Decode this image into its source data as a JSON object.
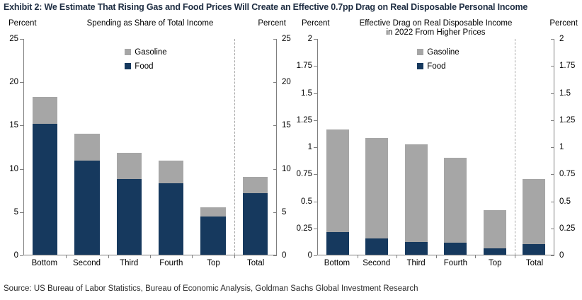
{
  "title": "Exhibit 2: We Estimate That Rising Gas and Food Prices Will Create an Effective 0.7pp Drag on Real Disposable Personal Income",
  "source": "Source: US Bureau of Labor Statistics, Bureau of Economic Analysis, Goldman Sachs Global Investment Research",
  "colors": {
    "food": "#16395E",
    "gasoline": "#A6A6A6",
    "axis": "#7F7F7F",
    "title_text": "#1E2D42"
  },
  "chart_data": [
    {
      "type": "bar",
      "stacked": true,
      "title": "Spending as Share of Total Income",
      "title_lines": [
        "Spending as Share of Total Income"
      ],
      "axis_label_left": "Percent",
      "axis_label_right": "Percent",
      "categories": [
        "Bottom",
        "Second",
        "Third",
        "Fourth",
        "Top",
        "Total"
      ],
      "separator_before_index": 5,
      "series": [
        {
          "name": "Food",
          "color_key": "food",
          "values": [
            15.2,
            10.9,
            8.8,
            8.3,
            4.4,
            7.1
          ]
        },
        {
          "name": "Gasoline",
          "color_key": "gasoline",
          "values": [
            3.1,
            3.1,
            3.0,
            2.6,
            1.1,
            1.9
          ]
        }
      ],
      "stack_totals": [
        18.3,
        14.0,
        11.8,
        10.9,
        5.5,
        9.0
      ],
      "legend": [
        "Gasoline",
        "Food"
      ],
      "legend_position": "top-center",
      "grid": false,
      "ylim": [
        0,
        25
      ],
      "yticks": [
        0,
        5,
        10,
        15,
        20,
        25
      ],
      "ytick_labels": [
        "0",
        "5",
        "10",
        "15",
        "20",
        "25"
      ]
    },
    {
      "type": "bar",
      "stacked": true,
      "title": "Effective Drag on Real Disposable Income in 2022 From Higher Prices",
      "title_lines": [
        "Effective Drag on Real Disposable Income",
        "in 2022 From Higher Prices"
      ],
      "axis_label_left": "Percent",
      "axis_label_right": "Percent",
      "categories": [
        "Bottom",
        "Second",
        "Third",
        "Fourth",
        "Top",
        "Total"
      ],
      "separator_before_index": 5,
      "series": [
        {
          "name": "Food",
          "color_key": "food",
          "values": [
            0.21,
            0.15,
            0.12,
            0.11,
            0.06,
            0.1
          ]
        },
        {
          "name": "Gasoline",
          "color_key": "gasoline",
          "values": [
            0.95,
            0.93,
            0.9,
            0.79,
            0.35,
            0.6
          ]
        }
      ],
      "stack_totals": [
        1.16,
        1.08,
        1.02,
        0.9,
        0.41,
        0.7
      ],
      "legend": [
        "Gasoline",
        "Food"
      ],
      "legend_position": "top-center",
      "grid": false,
      "ylim": [
        0,
        2
      ],
      "yticks": [
        0,
        0.25,
        0.5,
        0.75,
        1,
        1.25,
        1.5,
        1.75,
        2
      ],
      "ytick_labels": [
        "0",
        "0.25",
        "0.5",
        "0.75",
        "1",
        "1.25",
        "1.5",
        "1.75",
        "2"
      ]
    }
  ]
}
